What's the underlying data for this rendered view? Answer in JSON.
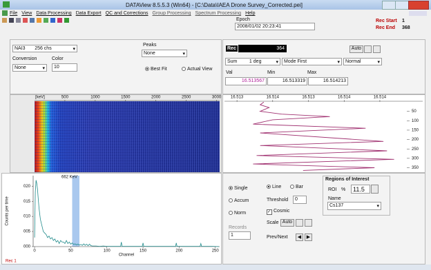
{
  "window": {
    "title": "DATAView 8.5.5.3 (Win64) - [C:\\Data\\IAEA Drone Survey_Corrected.pei]"
  },
  "menu": [
    "File",
    "View",
    "Data Processing",
    "Data Export",
    "QC and Corrections",
    "Group Processing",
    "Spectrum Processing",
    "Help"
  ],
  "epoch": {
    "label": "Epoch",
    "value": "2008/01/02 20:23:41"
  },
  "rec_range": {
    "start_label": "Rec Start",
    "start": "1",
    "end_label": "Rec End",
    "end": "368"
  },
  "left_controls": {
    "detector": "NAI3",
    "channels": "256 chs",
    "conversion_label": "Conversion",
    "conversion": "None",
    "color_label": "Color",
    "color": "10",
    "peaks_label": "Peaks",
    "peaks": "None",
    "fit_options": [
      "Best Fit",
      "Actual View"
    ]
  },
  "right_controls": {
    "rec_label": "Rec",
    "rec": "364",
    "auto": "Auto",
    "sum": "Sum",
    "sum_value": "1",
    "unit": "deg",
    "mode": "Mode First",
    "normal": "Normal",
    "val_label": "Val",
    "val": "16.513567",
    "min_label": "Min",
    "min": "16.513319",
    "max_label": "Max",
    "max": "16.514213"
  },
  "waterfall": {
    "xlabel": "[keV]",
    "xlim": [
      0,
      3050
    ],
    "xticks": [
      500,
      1000,
      1500,
      2000,
      2500,
      3000
    ]
  },
  "chart_data": [
    {
      "type": "line",
      "color": "#a03070",
      "records": [
        1,
        15,
        30,
        50,
        65,
        78,
        95,
        118,
        140,
        165,
        210,
        232,
        260,
        285,
        305,
        330,
        350,
        364
      ],
      "values": [
        16.51335,
        16.51333,
        16.51338,
        16.51333,
        16.51345,
        16.51372,
        16.5134,
        16.51329,
        16.51392,
        16.51333,
        16.51402,
        16.51333,
        16.51404,
        16.51331,
        16.51408,
        16.51329,
        16.51397,
        16.51357
      ],
      "xlim": [
        16.51313,
        16.51424
      ],
      "xticks": [
        {
          "value": 16.5132,
          "label": "16.513"
        },
        {
          "value": 16.5134,
          "label": "16.514"
        },
        {
          "value": 16.5136,
          "label": "16.513"
        },
        {
          "value": 16.5138,
          "label": "16.514"
        },
        {
          "value": 16.514,
          "label": "16.514"
        }
      ],
      "ylim": [
        0,
        370
      ],
      "yticks": [
        50,
        100,
        150,
        200,
        250,
        300,
        350
      ]
    },
    {
      "type": "line",
      "xlabel": "Channel",
      "ylabel": "Counts per time",
      "x": [
        0,
        1,
        2,
        3,
        4,
        5,
        6,
        7,
        8,
        10,
        12,
        14,
        16,
        18,
        20,
        22,
        24,
        26,
        28,
        30,
        32,
        34,
        36,
        38,
        40,
        42,
        44,
        46,
        48,
        50,
        52,
        54,
        56,
        58,
        60,
        62,
        64,
        66,
        68,
        70,
        72,
        74,
        76,
        78,
        80,
        85,
        90,
        95,
        100,
        110,
        119,
        120,
        121,
        130,
        149,
        150,
        151,
        170,
        195,
        196,
        197,
        210,
        229,
        230,
        231,
        245,
        255
      ],
      "series": [
        {
          "name": "Rec 1",
          "color": "#1f8a8a",
          "values": [
            0.003,
            0.018,
            0.022,
            0.021,
            0.019,
            0.016,
            0.013,
            0.011,
            0.009,
            0.007,
            0.005,
            0.0045,
            0.004,
            0.003,
            0.0035,
            0.0025,
            0.003,
            0.002,
            0.0025,
            0.0015,
            0.002,
            0.001,
            0.002,
            0.0015,
            0.0015,
            0.001,
            0.002,
            0.001,
            0.0015,
            0.0008,
            0.0012,
            0.0007,
            0.0009,
            0.0006,
            0.0008,
            0.0005,
            0.0007,
            0.0004,
            0.0009,
            0.0004,
            0.0008,
            0.0003,
            0.0008,
            0.0003,
            0.0002,
            0.0002,
            0.0001,
            0.0002,
            0.0001,
            0.0001,
            0.0001,
            0.0015,
            0.0001,
            0.0001,
            0.0001,
            0.0012,
            0.0001,
            0.0001,
            0.0001,
            0.0012,
            0.0001,
            0.0001,
            0.0001,
            0.001,
            0.0001,
            0.0001,
            0
          ]
        }
      ],
      "roi": {
        "label": "662 KeV",
        "range": [
          52,
          62
        ],
        "color": "#a9c8ee"
      },
      "xlim": [
        -2,
        256
      ],
      "xticks": [
        0,
        50,
        100,
        150,
        200,
        250
      ],
      "ylim": [
        0,
        0.0235
      ],
      "yticks": [
        {
          "value": 0.02,
          "label": "020"
        },
        {
          "value": 0.015,
          "label": "015"
        },
        {
          "value": 0.01,
          "label": "010"
        },
        {
          "value": 0.005,
          "label": "005"
        },
        {
          "value": 0,
          "label": "000"
        }
      ]
    }
  ],
  "bottom_controls": {
    "mode_options": [
      "Single",
      "Accum",
      "Norm"
    ],
    "records_label": "Records",
    "records": "1",
    "display_options": [
      "Line",
      "Bar"
    ],
    "threshold_label": "Threshold",
    "threshold": "0",
    "cosmic": "Cosmic",
    "scale_label": "Scale",
    "scale_auto": "Auto",
    "prev_next": "Prev/Next"
  },
  "roi_panel": {
    "title": "Regions of Interest",
    "roi_label": "ROI",
    "percent": "%",
    "value": "11.5",
    "name_label": "Name",
    "name": "Cs137"
  }
}
